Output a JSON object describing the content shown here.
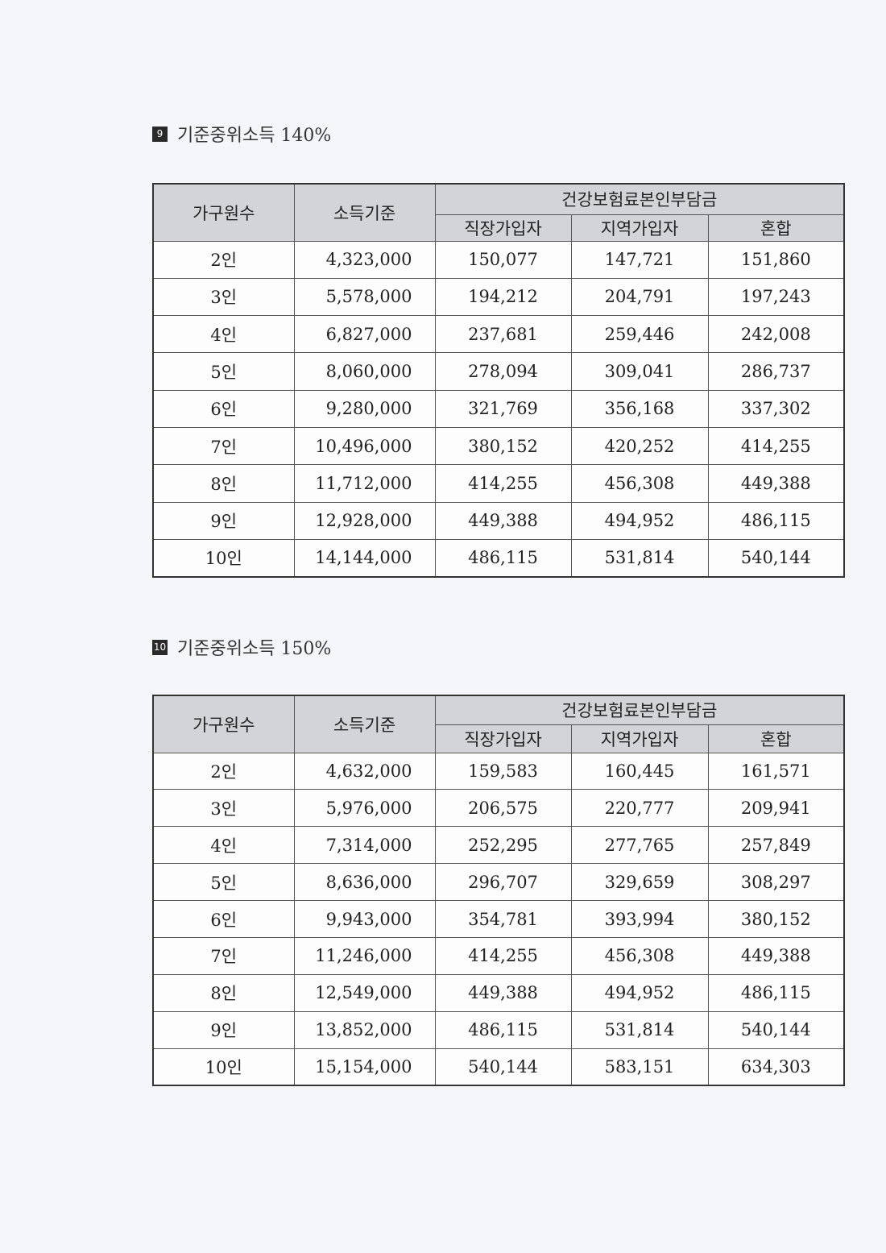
{
  "colors": {
    "header_bg": "#d3d4d8",
    "badge_bg": "#2a2a2a"
  },
  "tables": [
    {
      "number": "9",
      "title": "기준중위소득 140%",
      "headers": {
        "household": "가구원수",
        "income": "소득기준",
        "group": "건강보험료본인부담금",
        "sub": [
          "직장가입자",
          "지역가입자",
          "혼합"
        ]
      },
      "rows": [
        [
          "2인",
          "4,323,000",
          "150,077",
          "147,721",
          "151,860"
        ],
        [
          "3인",
          "5,578,000",
          "194,212",
          "204,791",
          "197,243"
        ],
        [
          "4인",
          "6,827,000",
          "237,681",
          "259,446",
          "242,008"
        ],
        [
          "5인",
          "8,060,000",
          "278,094",
          "309,041",
          "286,737"
        ],
        [
          "6인",
          "9,280,000",
          "321,769",
          "356,168",
          "337,302"
        ],
        [
          "7인",
          "10,496,000",
          "380,152",
          "420,252",
          "414,255"
        ],
        [
          "8인",
          "11,712,000",
          "414,255",
          "456,308",
          "449,388"
        ],
        [
          "9인",
          "12,928,000",
          "449,388",
          "494,952",
          "486,115"
        ],
        [
          "10인",
          "14,144,000",
          "486,115",
          "531,814",
          "540,144"
        ]
      ]
    },
    {
      "number": "10",
      "title": "기준중위소득 150%",
      "headers": {
        "household": "가구원수",
        "income": "소득기준",
        "group": "건강보험료본인부담금",
        "sub": [
          "직장가입자",
          "지역가입자",
          "혼합"
        ]
      },
      "rows": [
        [
          "2인",
          "4,632,000",
          "159,583",
          "160,445",
          "161,571"
        ],
        [
          "3인",
          "5,976,000",
          "206,575",
          "220,777",
          "209,941"
        ],
        [
          "4인",
          "7,314,000",
          "252,295",
          "277,765",
          "257,849"
        ],
        [
          "5인",
          "8,636,000",
          "296,707",
          "329,659",
          "308,297"
        ],
        [
          "6인",
          "9,943,000",
          "354,781",
          "393,994",
          "380,152"
        ],
        [
          "7인",
          "11,246,000",
          "414,255",
          "456,308",
          "449,388"
        ],
        [
          "8인",
          "12,549,000",
          "449,388",
          "494,952",
          "486,115"
        ],
        [
          "9인",
          "13,852,000",
          "486,115",
          "531,814",
          "540,144"
        ],
        [
          "10인",
          "15,154,000",
          "540,144",
          "583,151",
          "634,303"
        ]
      ]
    }
  ]
}
